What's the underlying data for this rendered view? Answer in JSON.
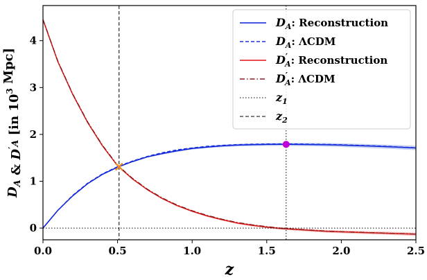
{
  "chart_data": {
    "type": "line",
    "xlabel": "z",
    "ylabel": "D_A & D'_A [in 10^3 Mpc]",
    "xlim": [
      0.0,
      2.5
    ],
    "ylim": [
      -0.25,
      4.75
    ],
    "x_ticks": [
      "0.0",
      "0.5",
      "1.0",
      "1.5",
      "2.0",
      "2.5"
    ],
    "y_ticks": [
      "0",
      "1",
      "2",
      "3",
      "4"
    ],
    "grid": false,
    "legend_position": "top-right",
    "colors": {
      "DA_recon": "#0a1fd6",
      "DA_lcdm": "#1a2fe0",
      "dDA_recon": "#e01010",
      "dDA_lcdm": "#8b1a1a",
      "DA_band": "#8fa7e8",
      "dDA_band": "#f4a3a0",
      "marker_cross": "#f08a24",
      "marker_peak": "#c000d8"
    },
    "x": [
      0.0,
      0.1,
      0.2,
      0.3,
      0.4,
      0.5,
      0.6,
      0.7,
      0.8,
      0.9,
      1.0,
      1.1,
      1.2,
      1.3,
      1.4,
      1.5,
      1.6,
      1.7,
      1.8,
      1.9,
      2.0,
      2.1,
      2.2,
      2.3,
      2.4,
      2.5
    ],
    "series": [
      {
        "name": "D_A: Reconstruction",
        "style": "solid",
        "color_key": "DA_recon",
        "values": [
          0.0,
          0.38,
          0.69,
          0.95,
          1.15,
          1.3,
          1.42,
          1.52,
          1.59,
          1.65,
          1.7,
          1.73,
          1.755,
          1.77,
          1.78,
          1.785,
          1.787,
          1.786,
          1.783,
          1.778,
          1.77,
          1.76,
          1.75,
          1.738,
          1.725,
          1.71
        ]
      },
      {
        "name": "D_A: ΛCDM",
        "style": "dashed",
        "color_key": "DA_lcdm",
        "values": [
          0.0,
          0.38,
          0.7,
          0.96,
          1.16,
          1.31,
          1.43,
          1.53,
          1.61,
          1.67,
          1.71,
          1.745,
          1.765,
          1.78,
          1.79,
          1.795,
          1.796,
          1.794,
          1.79,
          1.785,
          1.778,
          1.768,
          1.757,
          1.745,
          1.73,
          1.715
        ]
      },
      {
        "name": "D'_A: Reconstruction",
        "style": "solid",
        "color_key": "dDA_recon",
        "values": [
          4.45,
          3.55,
          2.85,
          2.25,
          1.75,
          1.33,
          1.05,
          0.82,
          0.63,
          0.48,
          0.36,
          0.26,
          0.18,
          0.11,
          0.06,
          0.02,
          -0.01,
          -0.03,
          -0.05,
          -0.07,
          -0.08,
          -0.09,
          -0.1,
          -0.11,
          -0.12,
          -0.13
        ]
      },
      {
        "name": "D'_A: ΛCDM",
        "style": "dashdot",
        "color_key": "dDA_lcdm",
        "values": [
          4.45,
          3.56,
          2.86,
          2.26,
          1.76,
          1.34,
          1.06,
          0.83,
          0.64,
          0.49,
          0.37,
          0.27,
          0.19,
          0.12,
          0.07,
          0.03,
          -0.005,
          -0.025,
          -0.045,
          -0.065,
          -0.078,
          -0.088,
          -0.098,
          -0.108,
          -0.118,
          -0.128
        ]
      }
    ],
    "vlines": [
      {
        "name": "z_1",
        "x": 1.63,
        "style": "dotted"
      },
      {
        "name": "z_2",
        "x": 0.51,
        "style": "dashed"
      }
    ],
    "hline": {
      "y": 0.0,
      "style": "dotted"
    },
    "markers": [
      {
        "x": 0.51,
        "y": 1.31,
        "shape": "cross",
        "color_key": "marker_cross"
      },
      {
        "x": 1.63,
        "y": 1.787,
        "shape": "circle",
        "color_key": "marker_peak"
      }
    ],
    "legend": [
      {
        "prefix": "D",
        "sub": "A",
        "prime": false,
        "suffix": ": Reconstruction",
        "style": "solid",
        "color_key": "DA_recon"
      },
      {
        "prefix": "D",
        "sub": "A",
        "prime": false,
        "suffix": ": ΛCDM",
        "style": "dashed",
        "color_key": "DA_lcdm"
      },
      {
        "prefix": "D",
        "sub": "A",
        "prime": true,
        "suffix": ": Reconstruction",
        "style": "solid",
        "color_key": "dDA_recon"
      },
      {
        "prefix": "D",
        "sub": "A",
        "prime": true,
        "suffix": ": ΛCDM",
        "style": "dashdot",
        "color_key": "dDA_lcdm"
      },
      {
        "prefix": "z",
        "sub": "1",
        "prime": false,
        "suffix": "",
        "style": "dotted",
        "color_key": null
      },
      {
        "prefix": "z",
        "sub": "2",
        "prime": false,
        "suffix": "",
        "style": "dashed",
        "color_key": null
      }
    ]
  }
}
